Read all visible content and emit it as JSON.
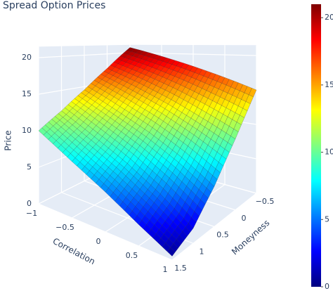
{
  "chart_data": {
    "type": "surface",
    "title": "Spread Option Prices",
    "x_label": "Correlation",
    "y_label": "Moneyness",
    "z_label": "Price",
    "x": [
      -1,
      -0.5,
      0,
      0.5,
      1
    ],
    "y": [
      -0.5,
      0,
      0.5,
      1,
      1.5
    ],
    "z": [
      [
        21,
        19.5,
        18,
        16.5,
        15
      ],
      [
        17.5,
        15.8,
        14,
        12,
        10
      ],
      [
        14.5,
        12.5,
        10.5,
        8.2,
        5.5
      ],
      [
        12,
        9.8,
        7.6,
        5,
        2
      ],
      [
        10,
        7.6,
        5.3,
        2.8,
        0.5
      ]
    ],
    "xlim": [
      -1,
      1
    ],
    "ylim": [
      -0.5,
      1.5
    ],
    "zlim": [
      0,
      21.5
    ],
    "xticks": [
      {
        "value": -1,
        "label": "−1"
      },
      {
        "value": -0.5,
        "label": "−0.5"
      },
      0,
      0.5,
      1
    ],
    "yticks": [
      {
        "value": -0.5,
        "label": "−0.5"
      },
      0,
      0.5,
      1,
      1.5
    ],
    "zticks": [
      0,
      5,
      10,
      15,
      20
    ],
    "colorscale": [
      "#00007f",
      "#0000ff",
      "#007fff",
      "#00ffff",
      "#7fff7f",
      "#ffff00",
      "#ff7f00",
      "#ff0000",
      "#7f0000"
    ],
    "colorbar": {
      "lim": [
        0,
        21
      ],
      "ticks": [
        0,
        5,
        10,
        15,
        20
      ]
    }
  }
}
